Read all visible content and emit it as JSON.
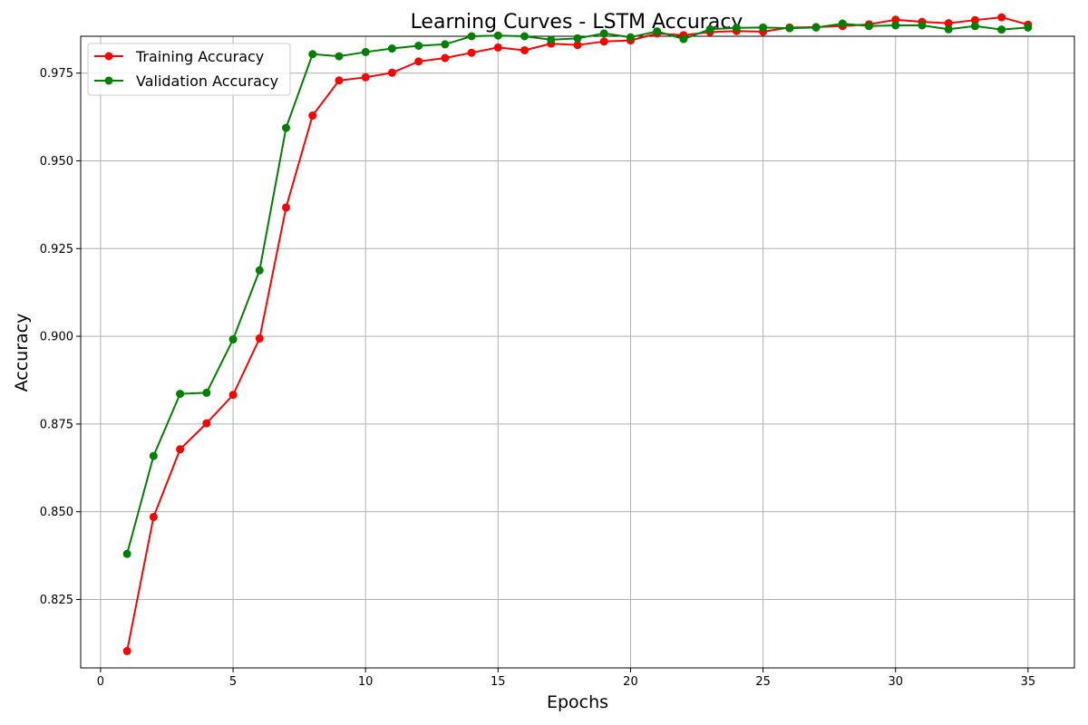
{
  "chart_data": {
    "type": "line",
    "title": "Learning Curves - LSTM Accuracy",
    "xlabel": "Epochs",
    "ylabel": "Accuracy",
    "xlim": [
      -0.75,
      36.75
    ],
    "ylim": [
      0.8055,
      0.9855
    ],
    "xticks": [
      0,
      5,
      10,
      15,
      20,
      25,
      30,
      35
    ],
    "yticks": [
      0.825,
      0.85,
      0.875,
      0.9,
      0.925,
      0.95,
      0.975
    ],
    "xtick_labels": [
      "0",
      "5",
      "10",
      "15",
      "20",
      "25",
      "30",
      "35"
    ],
    "ytick_labels": [
      "0.825",
      "0.850",
      "0.875",
      "0.900",
      "0.925",
      "0.950",
      "0.975"
    ],
    "grid": true,
    "legend_position": "top-left",
    "x": [
      1,
      2,
      3,
      4,
      5,
      6,
      7,
      8,
      9,
      10,
      11,
      12,
      13,
      14,
      15,
      16,
      17,
      18,
      19,
      20,
      21,
      22,
      23,
      24,
      25,
      26,
      27,
      28,
      29,
      30,
      31,
      32,
      33,
      34,
      35
    ],
    "series": [
      {
        "name": "Training Accuracy",
        "color": "#ff0000",
        "marker": "circle",
        "values": [
          0.8103,
          0.8485,
          0.8678,
          0.8752,
          0.8833,
          0.8994,
          0.9367,
          0.9629,
          0.9729,
          0.9738,
          0.9751,
          0.9783,
          0.9793,
          0.9808,
          0.9823,
          0.9815,
          0.9834,
          0.983,
          0.984,
          0.9843,
          0.9863,
          0.9858,
          0.9867,
          0.987,
          0.9868,
          0.988,
          0.9881,
          0.9884,
          0.9889,
          0.9902,
          0.9896,
          0.9892,
          0.9901,
          0.9909,
          0.9888
        ]
      },
      {
        "name": "Validation Accuracy",
        "color": "#008000",
        "marker": "circle",
        "values": [
          0.838,
          0.8659,
          0.8836,
          0.8839,
          0.8991,
          0.9188,
          0.9594,
          0.9804,
          0.9798,
          0.981,
          0.982,
          0.9828,
          0.9832,
          0.9855,
          0.9857,
          0.9855,
          0.9845,
          0.9849,
          0.9863,
          0.9852,
          0.9869,
          0.9847,
          0.9875,
          0.9879,
          0.988,
          0.9878,
          0.988,
          0.9891,
          0.9884,
          0.9886,
          0.9886,
          0.9875,
          0.9884,
          0.9874,
          0.988
        ]
      }
    ]
  }
}
